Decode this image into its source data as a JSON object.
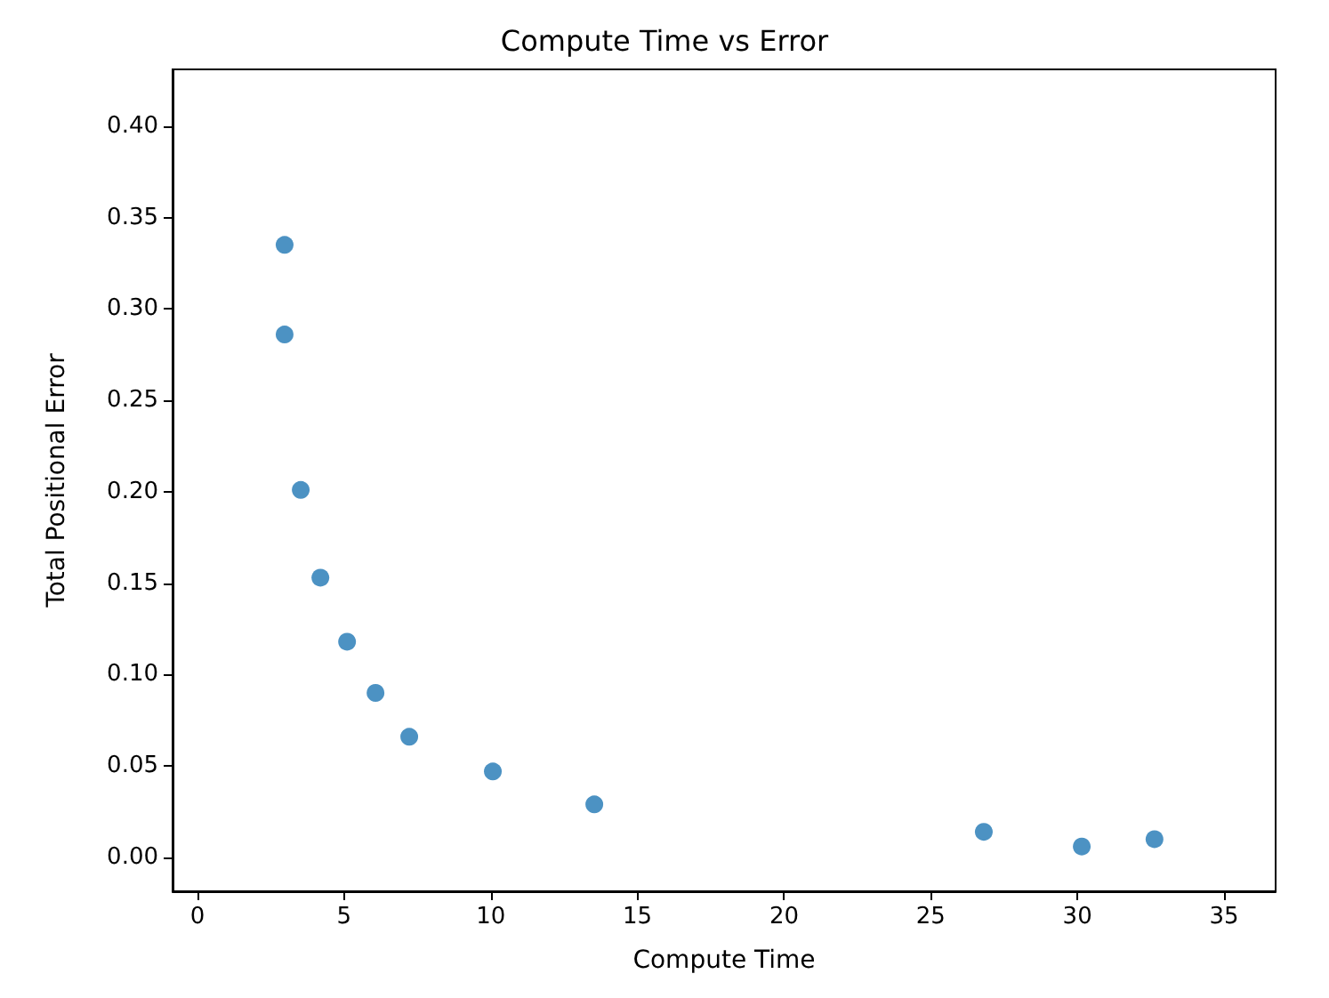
{
  "chart_data": {
    "type": "scatter",
    "title": "Compute Time vs Error",
    "xlabel": "Compute Time",
    "ylabel": "Total Positional Error",
    "x": [
      2.97,
      2.97,
      3.52,
      4.19,
      5.1,
      6.07,
      7.22,
      10.07,
      13.53,
      26.81,
      30.15,
      32.63
    ],
    "values": [
      0.335,
      0.286,
      0.201,
      0.153,
      0.118,
      0.09,
      0.066,
      0.047,
      0.029,
      0.014,
      0.006,
      0.01
    ],
    "color": "#1f77b4",
    "marker": "circle",
    "xlim": [
      -0.85,
      36.76
    ],
    "xticks": [
      0,
      5,
      10,
      15,
      20,
      25,
      30,
      35
    ],
    "ylim": [
      -0.0185,
      0.431
    ],
    "yticks": [
      {
        "value": 0,
        "label": "0.00"
      },
      {
        "value": 0.05,
        "label": "0.05"
      },
      {
        "value": 0.1,
        "label": "0.10"
      },
      {
        "value": 0.15,
        "label": "0.15"
      },
      {
        "value": 0.2,
        "label": "0.20"
      },
      {
        "value": 0.25,
        "label": "0.25"
      },
      {
        "value": 0.3,
        "label": "0.30"
      },
      {
        "value": 0.35,
        "label": "0.35"
      },
      {
        "value": 0.4,
        "label": "0.40"
      }
    ]
  }
}
